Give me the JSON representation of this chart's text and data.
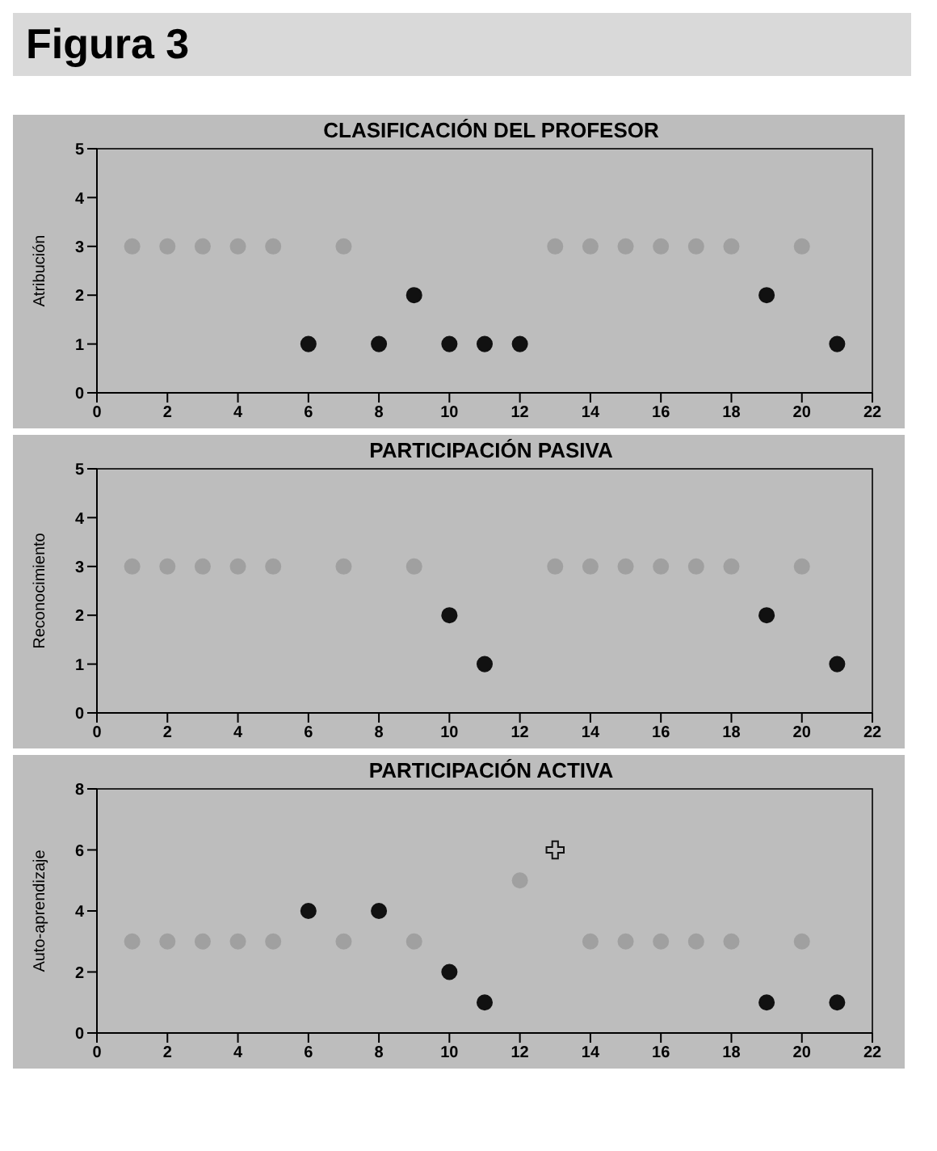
{
  "chart_data": [
    {
      "type": "scatter",
      "annotations": [
        "Figura 3"
      ],
      "title": "CLASIFICACIÓN DEL PROFESOR",
      "ylabel": "Atribución",
      "xlim": [
        0,
        22
      ],
      "xticks": [
        0,
        2,
        4,
        6,
        8,
        10,
        12,
        14,
        16,
        18,
        20,
        22
      ],
      "ylim": [
        0,
        5
      ],
      "yticks": [
        0,
        1,
        2,
        3,
        4,
        5
      ],
      "marker": "circle",
      "series": [
        {
          "color": "#a0a0a0",
          "x": [
            1,
            2,
            3,
            4,
            5,
            7,
            13,
            14,
            15,
            16,
            17,
            18,
            20
          ],
          "values": [
            3,
            3,
            3,
            3,
            3,
            3,
            3,
            3,
            3,
            3,
            3,
            3,
            3
          ]
        },
        {
          "color": "#111111",
          "x": [
            6,
            8,
            9,
            10,
            11,
            12,
            19,
            21
          ],
          "values": [
            1,
            1,
            2,
            1,
            1,
            1,
            2,
            1
          ]
        }
      ]
    },
    {
      "type": "scatter",
      "title": "PARTICIPACIÓN PASIVA",
      "ylabel": "Reconocimiento",
      "xlim": [
        0,
        22
      ],
      "xticks": [
        0,
        2,
        4,
        6,
        8,
        10,
        12,
        14,
        16,
        18,
        20,
        22
      ],
      "ylim": [
        0,
        5
      ],
      "yticks": [
        0,
        1,
        2,
        3,
        4,
        5
      ],
      "marker": "circle",
      "series": [
        {
          "color": "#a0a0a0",
          "x": [
            1,
            2,
            3,
            4,
            5,
            7,
            9,
            13,
            14,
            15,
            16,
            17,
            18,
            20
          ],
          "values": [
            3,
            3,
            3,
            3,
            3,
            3,
            3,
            3,
            3,
            3,
            3,
            3,
            3,
            3
          ]
        },
        {
          "color": "#111111",
          "x": [
            10,
            11,
            19,
            21
          ],
          "values": [
            2,
            1,
            2,
            1
          ]
        }
      ]
    },
    {
      "type": "scatter",
      "title": "PARTICIPACIÓN ACTIVA",
      "ylabel": "Auto-aprendizaje",
      "xlim": [
        0,
        22
      ],
      "xticks": [
        0,
        2,
        4,
        6,
        8,
        10,
        12,
        14,
        16,
        18,
        20,
        22
      ],
      "ylim": [
        0,
        8
      ],
      "yticks": [
        0,
        2,
        4,
        6,
        8
      ],
      "marker": "circle",
      "series": [
        {
          "color": "#a0a0a0",
          "x": [
            1,
            2,
            3,
            4,
            5,
            7,
            9,
            12,
            14,
            15,
            16,
            17,
            18,
            20
          ],
          "values": [
            3,
            3,
            3,
            3,
            3,
            3,
            3,
            5,
            3,
            3,
            3,
            3,
            3,
            3
          ]
        },
        {
          "color": "#111111",
          "x": [
            6,
            8,
            10,
            11,
            19,
            21
          ],
          "values": [
            4,
            4,
            2,
            1,
            1,
            1
          ]
        },
        {
          "color": "#111111",
          "marker": "cross",
          "x": [
            13
          ],
          "values": [
            6
          ]
        }
      ]
    }
  ]
}
